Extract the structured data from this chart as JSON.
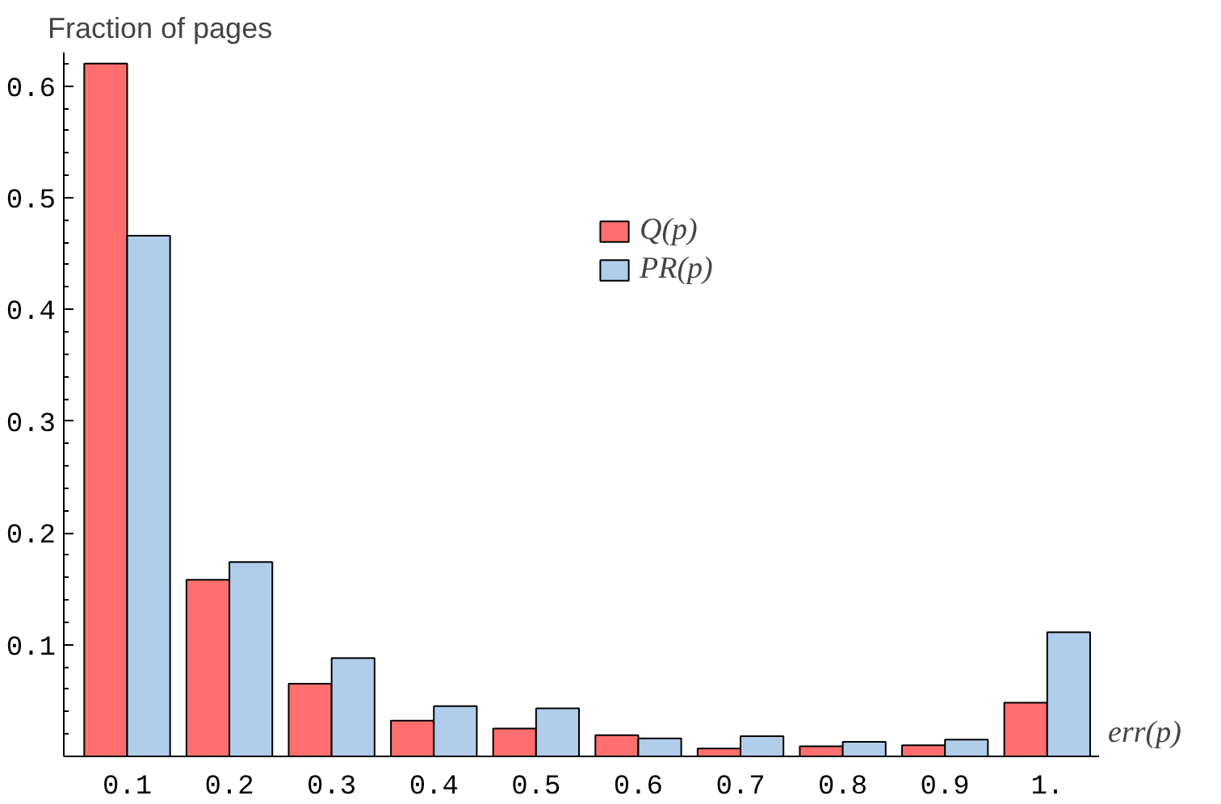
{
  "chart_data": {
    "type": "bar",
    "ylabel": "Fraction of pages",
    "xlabel": "err(p)",
    "categories": [
      "0.1",
      "0.2",
      "0.3",
      "0.4",
      "0.5",
      "0.6",
      "0.7",
      "0.8",
      "0.9",
      "1."
    ],
    "series": [
      {
        "name": "Q(p)",
        "color": "#ff6f6f",
        "values": [
          0.62,
          0.158,
          0.065,
          0.032,
          0.025,
          0.019,
          0.007,
          0.009,
          0.01,
          0.048
        ]
      },
      {
        "name": "PR(p)",
        "color": "#b0cdea",
        "values": [
          0.466,
          0.174,
          0.088,
          0.045,
          0.043,
          0.016,
          0.018,
          0.013,
          0.015,
          0.111
        ]
      }
    ],
    "ylim": [
      0,
      0.63
    ],
    "yticks": [
      0.1,
      0.2,
      0.3,
      0.4,
      0.5,
      0.6
    ],
    "grid": false,
    "legend": "top right"
  }
}
